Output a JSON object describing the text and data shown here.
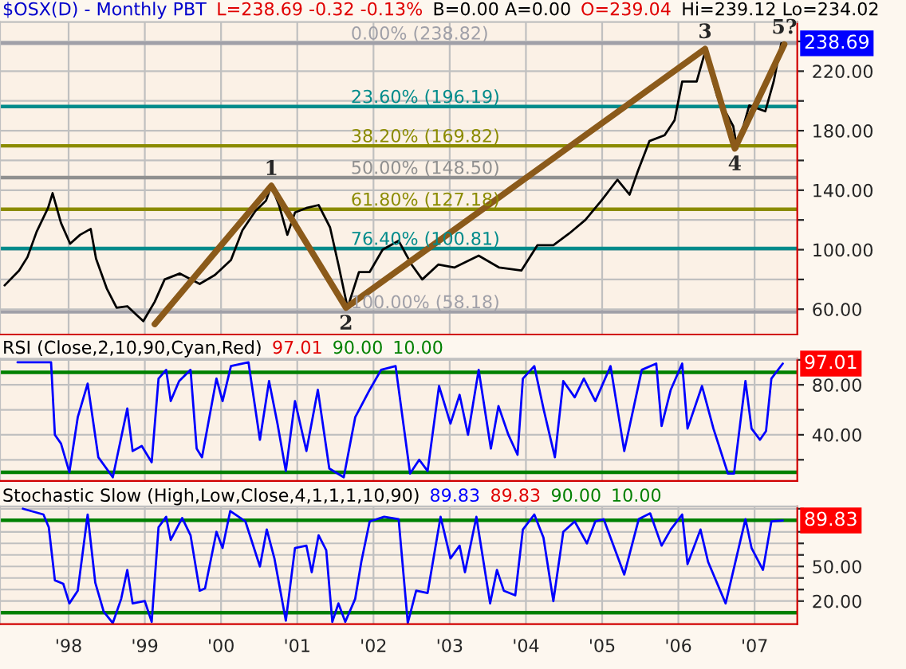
{
  "chart_data": [
    {
      "type": "line",
      "title": "$OSX(D) - Monthly PBT",
      "annotations": [
        "L=238.69 -0.32 -0.13%",
        "B=0.00 A=0.00",
        "O=239.04",
        "Hi=239.12 Lo=234.02",
        {
          "text": "1",
          "x": 2000.66,
          "y": 143
        },
        {
          "text": "2",
          "x": 2001.64,
          "y": 61
        },
        {
          "text": "3",
          "x": 2006.35,
          "y": 235
        },
        {
          "text": "4",
          "x": 2006.74,
          "y": 168
        },
        {
          "text": "5?",
          "x": 2007.39,
          "y": 238
        }
      ],
      "series": [
        {
          "color": "#000000",
          "x": [
            1997.16,
            1997.35,
            1997.46,
            1997.58,
            1997.73,
            1997.79,
            1997.9,
            1998.02,
            1998.15,
            1998.29,
            1998.36,
            1998.5,
            1998.63,
            1998.77,
            1998.98,
            1999.13,
            1999.26,
            1999.46,
            1999.72,
            1999.92,
            2000.13,
            2000.28,
            2000.45,
            2000.59,
            2000.66,
            2000.76,
            2000.87,
            2000.97,
            2001.12,
            2001.28,
            2001.43,
            2001.54,
            2001.66,
            2001.81,
            2001.95,
            2002.12,
            2002.33,
            2002.5,
            2002.64,
            2002.85,
            2003.06,
            2003.38,
            2003.65,
            2003.94,
            2004.15,
            2004.36,
            2004.57,
            2004.78,
            2004.99,
            2005.2,
            2005.36,
            2005.47,
            2005.62,
            2005.82,
            2005.95,
            2006.05,
            2006.24,
            2006.35,
            2006.51,
            2006.72,
            2006.77,
            2006.93,
            2007.14,
            2007.25,
            2007.35
          ],
          "values": [
            76,
            86,
            95,
            112,
            128,
            138,
            118,
            104,
            110,
            114,
            94,
            74,
            61,
            62,
            52,
            65,
            80,
            84,
            77,
            83,
            93,
            113,
            126,
            133,
            143,
            130,
            110,
            125,
            128,
            130,
            115,
            90,
            61,
            85,
            85,
            100,
            106,
            90,
            80,
            90,
            88,
            96,
            88,
            86,
            103,
            103,
            111,
            120,
            133,
            147,
            137,
            153,
            173,
            177,
            187,
            213,
            213,
            233,
            203,
            183,
            168,
            197,
            193,
            213,
            238.69
          ],
          "value_labels": [
            null,
            null,
            null,
            null,
            null,
            null,
            null,
            null,
            null,
            null,
            null,
            null,
            null,
            null,
            null,
            null,
            null,
            null,
            null,
            null,
            null,
            null,
            null,
            null,
            null,
            null,
            null,
            null,
            null,
            null,
            null,
            null,
            null,
            null,
            null,
            null,
            null,
            null,
            null,
            null,
            null,
            null,
            null,
            null,
            null,
            null,
            null,
            null,
            null,
            null,
            null,
            null,
            null,
            null,
            null,
            null,
            null,
            null,
            null,
            null,
            null,
            null,
            null,
            null,
            "238.69"
          ]
        },
        {
          "color": "#8b5a1a",
          "x": [
            1999.13,
            2000.66,
            2001.64,
            2006.35,
            2006.74,
            2007.39
          ],
          "values": [
            50,
            143,
            61,
            235,
            168,
            238
          ]
        }
      ],
      "xlim": [
        1997.1,
        2007.56
      ],
      "xticks": [
        1998,
        1999,
        2000,
        2001,
        2002,
        2003,
        2004,
        2005,
        2006,
        2007
      ],
      "ylim": [
        43,
        253
      ],
      "yticks": [
        {
          "value": 60,
          "label": "60.00"
        },
        {
          "value": 80,
          "label": null
        },
        {
          "value": 100,
          "label": "100.00"
        },
        {
          "value": 120,
          "label": null
        },
        {
          "value": 140,
          "label": "140.00"
        },
        {
          "value": 160,
          "label": null
        },
        {
          "value": 180,
          "label": "180.00"
        },
        {
          "value": 200,
          "label": null
        },
        {
          "value": 220,
          "label": "220.00"
        },
        {
          "value": 240,
          "label": null
        }
      ],
      "ref_lines": [
        {
          "axis": "y",
          "value": 238.82,
          "label": "0.00% (238.82)",
          "color": "#a0a0a8"
        },
        {
          "axis": "y",
          "value": 196.19,
          "label": "23.60% (196.19)",
          "color": "#008b8b"
        },
        {
          "axis": "y",
          "value": 169.82,
          "label": "38.20% (169.82)",
          "color": "#8b8b00"
        },
        {
          "axis": "y",
          "value": 148.5,
          "label": "50.00% (148.50)",
          "color": "#909090"
        },
        {
          "axis": "y",
          "value": 127.18,
          "label": "61.80% (127.18)",
          "color": "#8b8b00"
        },
        {
          "axis": "y",
          "value": 100.81,
          "label": "76.40% (100.81)",
          "color": "#008b8b"
        },
        {
          "axis": "y",
          "value": 58.18,
          "label": "100.00% (58.18)",
          "color": "#a0a0a8"
        }
      ],
      "grid": true,
      "tick_labels": "y"
    },
    {
      "type": "line",
      "title": "RSI (Close,2,10,90,Cyan,Red)",
      "annotations": [
        "97.01",
        "90.00",
        "10.00"
      ],
      "series": [
        {
          "color": "#0000ff",
          "x": [
            1997.33,
            1997.77,
            1997.82,
            1997.9,
            1998.01,
            1998.12,
            1998.25,
            1998.39,
            1998.58,
            1998.77,
            1998.84,
            1998.96,
            1999.09,
            1999.18,
            1999.28,
            1999.34,
            1999.45,
            1999.6,
            1999.68,
            1999.75,
            1999.94,
            2000.02,
            2000.13,
            2000.36,
            2000.51,
            2000.63,
            2000.74,
            2000.85,
            2000.97,
            2001.12,
            2001.27,
            2001.42,
            2001.61,
            2001.76,
            2001.95,
            2002.1,
            2002.29,
            2002.48,
            2002.6,
            2002.71,
            2002.86,
            2003.01,
            2003.13,
            2003.24,
            2003.38,
            2003.54,
            2003.64,
            2003.77,
            2003.89,
            2003.96,
            2004.11,
            2004.23,
            2004.38,
            2004.49,
            2004.64,
            2004.76,
            2004.91,
            2005.11,
            2005.29,
            2005.52,
            2005.71,
            2005.78,
            2005.9,
            2006.05,
            2006.12,
            2006.31,
            2006.46,
            2006.65,
            2006.73,
            2006.88,
            2006.96,
            2007.07,
            2007.15,
            2007.22,
            2007.37
          ],
          "values": [
            98,
            98,
            40,
            33,
            10,
            54,
            81,
            22,
            6,
            61,
            27,
            31,
            18,
            85,
            92,
            67,
            83,
            92,
            29,
            22,
            85,
            67,
            95,
            98,
            36,
            83,
            49,
            11,
            67,
            27,
            76,
            13,
            6,
            54,
            76,
            92,
            95,
            9,
            20,
            11,
            79,
            49,
            72,
            40,
            92,
            29,
            63,
            40,
            24,
            85,
            95,
            61,
            22,
            83,
            70,
            85,
            67,
            95,
            27,
            92,
            97,
            47,
            76,
            97,
            45,
            79,
            45,
            9,
            9,
            83,
            45,
            36,
            43,
            85,
            97.01
          ],
          "value_labels": [
            null,
            null,
            null,
            null,
            null,
            null,
            null,
            null,
            null,
            null,
            null,
            null,
            null,
            null,
            null,
            null,
            null,
            null,
            null,
            null,
            null,
            null,
            null,
            null,
            null,
            null,
            null,
            null,
            null,
            null,
            null,
            null,
            null,
            null,
            null,
            null,
            null,
            null,
            null,
            null,
            null,
            null,
            null,
            null,
            null,
            null,
            null,
            null,
            null,
            null,
            null,
            null,
            null,
            null,
            null,
            null,
            null,
            null,
            null,
            null,
            null,
            null,
            null,
            null,
            null,
            null,
            null,
            null,
            null,
            null,
            null,
            null,
            null,
            null,
            "97.01"
          ]
        }
      ],
      "xlim": [
        1997.1,
        2007.56
      ],
      "xticks": [
        1998,
        1999,
        2000,
        2001,
        2002,
        2003,
        2004,
        2005,
        2006,
        2007
      ],
      "ylim": [
        3,
        101
      ],
      "yticks": [
        {
          "value": 20,
          "label": null
        },
        {
          "value": 40,
          "label": "40.00"
        },
        {
          "value": 60,
          "label": null
        },
        {
          "value": 80,
          "label": "80.00"
        },
        {
          "value": 100,
          "label": null
        }
      ],
      "ref_lines": [
        {
          "axis": "y",
          "value": 90,
          "color": "#008000"
        },
        {
          "axis": "y",
          "value": 10,
          "color": "#008000"
        }
      ],
      "grid": true,
      "tick_labels": "y"
    },
    {
      "type": "line",
      "title": "Stochastic Slow (High,Low,Close,4,1,1,1,10,90)",
      "annotations": [
        "89.83",
        "89.83",
        "90.00",
        "10.00"
      ],
      "series": [
        {
          "color": "#0000ff",
          "x": [
            1997.4,
            1997.67,
            1997.74,
            1997.82,
            1997.93,
            1998.01,
            1998.12,
            1998.25,
            1998.35,
            1998.46,
            1998.58,
            1998.69,
            1998.77,
            1998.84,
            1999.0,
            1999.09,
            1999.18,
            1999.28,
            1999.34,
            1999.49,
            1999.6,
            1999.72,
            1999.79,
            1999.94,
            2000.02,
            2000.12,
            2000.32,
            2000.51,
            2000.6,
            2000.7,
            2000.85,
            2000.97,
            2001.12,
            2001.19,
            2001.28,
            2001.38,
            2001.46,
            2001.54,
            2001.63,
            2001.76,
            2001.84,
            2001.95,
            2002.14,
            2002.33,
            2002.45,
            2002.56,
            2002.71,
            2002.88,
            2003.01,
            2003.13,
            2003.2,
            2003.35,
            2003.53,
            2003.62,
            2003.71,
            2003.86,
            2003.96,
            2004.11,
            2004.23,
            2004.36,
            2004.49,
            2004.64,
            2004.8,
            2004.91,
            2005.02,
            2005.29,
            2005.48,
            2005.63,
            2005.78,
            2005.9,
            2006.05,
            2006.12,
            2006.29,
            2006.39,
            2006.62,
            2006.88,
            2006.96,
            2007.11,
            2007.22,
            2007.37
          ],
          "values": [
            100,
            95,
            84,
            38,
            35,
            18,
            29,
            95,
            36,
            11,
            1,
            22,
            47,
            18,
            20,
            2,
            84,
            93,
            73,
            92,
            77,
            29,
            31,
            80,
            66,
            98,
            89,
            50,
            82,
            57,
            3,
            66,
            68,
            45,
            77,
            64,
            2,
            18,
            2,
            22,
            54,
            89,
            93,
            91,
            1,
            29,
            27,
            93,
            57,
            68,
            45,
            93,
            18,
            47,
            29,
            25,
            82,
            95,
            75,
            20,
            80,
            89,
            70,
            89,
            91,
            43,
            91,
            96,
            68,
            82,
            95,
            52,
            82,
            54,
            18,
            91,
            66,
            47,
            89,
            89.83
          ],
          "value_labels": [
            null,
            null,
            null,
            null,
            null,
            null,
            null,
            null,
            null,
            null,
            null,
            null,
            null,
            null,
            null,
            null,
            null,
            null,
            null,
            null,
            null,
            null,
            null,
            null,
            null,
            null,
            null,
            null,
            null,
            null,
            null,
            null,
            null,
            null,
            null,
            null,
            null,
            null,
            null,
            null,
            null,
            null,
            null,
            null,
            null,
            null,
            null,
            null,
            null,
            null,
            null,
            null,
            null,
            null,
            null,
            null,
            null,
            null,
            null,
            null,
            null,
            null,
            null,
            null,
            null,
            null,
            null,
            null,
            null,
            null,
            null,
            null,
            null,
            null,
            null,
            null,
            null,
            null,
            null,
            "89.83"
          ]
        }
      ],
      "xlim": [
        1997.1,
        2007.56
      ],
      "xticks": [
        {
          "value": 1998,
          "label": "'98"
        },
        {
          "value": 1999,
          "label": "'99"
        },
        {
          "value": 2000,
          "label": "'00"
        },
        {
          "value": 2001,
          "label": "'01"
        },
        {
          "value": 2002,
          "label": "'02"
        },
        {
          "value": 2003,
          "label": "'03"
        },
        {
          "value": 2004,
          "label": "'04"
        },
        {
          "value": 2005,
          "label": "'05"
        },
        {
          "value": 2006,
          "label": "'06"
        },
        {
          "value": 2007,
          "label": "'07"
        }
      ],
      "ylim": [
        0,
        102
      ],
      "yticks": [
        {
          "value": 20,
          "label": "20.00"
        },
        {
          "value": 30,
          "label": null
        },
        {
          "value": 40,
          "label": null
        },
        {
          "value": 50,
          "label": "50.00"
        },
        {
          "value": 60,
          "label": null
        },
        {
          "value": 70,
          "label": null
        },
        {
          "value": 80,
          "label": null
        },
        {
          "value": 100,
          "label": null
        }
      ],
      "ref_lines": [
        {
          "axis": "y",
          "value": 90,
          "color": "#008000"
        },
        {
          "axis": "y",
          "value": 10,
          "color": "#008000"
        }
      ],
      "grid": true
    }
  ]
}
